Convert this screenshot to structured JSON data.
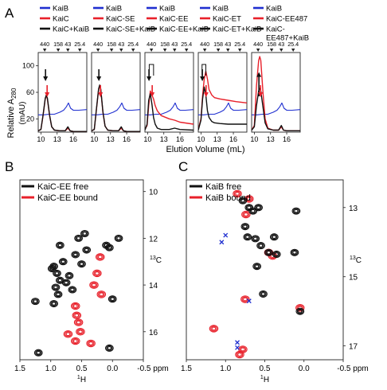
{
  "colors": {
    "blue": "#1f2fd0",
    "red": "#e8202a",
    "black": "#111111",
    "gray": "#777777"
  },
  "panel_labels": {
    "a": "A",
    "b": "B",
    "c": "C"
  },
  "panel_a": {
    "legends": [
      [
        "KaiB",
        "KaiC",
        "KaiC+KaiB"
      ],
      [
        "KaiB",
        "KaiC-SE",
        "KaiC-SE+KaiB"
      ],
      [
        "KaiB",
        "KaiC-EE",
        "KaiC-EE+KaiB"
      ],
      [
        "KaiB",
        "KaiC-ET",
        "KaiC-ET+KaiB"
      ],
      [
        "KaiB",
        "KaiC-EE487",
        "KaiC-\nEE487+KaiB"
      ]
    ],
    "marker_labels": [
      "440",
      "158",
      "43",
      "25.4"
    ],
    "ylabel": "Relative A280",
    "ylabel_main": "Relative A",
    "ylabel_sub": "280",
    "ylabel_unit": "(mAU)",
    "xlabel": "Elution Volume (mL)"
  },
  "chart_data": [
    {
      "type": "line",
      "panel": "A",
      "xlabel": "Elution Volume (mL)",
      "ylabel": "Relative A280 (mAU)",
      "xlim": [
        9.5,
        18.5
      ],
      "ylim": [
        0,
        120
      ],
      "xticks": [
        10,
        13,
        16
      ],
      "yticks": [
        20,
        60,
        100
      ],
      "top_markers": [
        {
          "label": "440",
          "x": 10.7
        },
        {
          "label": "158",
          "x": 13.2
        },
        {
          "label": "43",
          "x": 15.0
        },
        {
          "label": "25.4",
          "x": 17.2
        }
      ],
      "subpanels": [
        {
          "series": [
            {
              "name": "KaiB",
              "color": "blue",
              "x": [
                9.5,
                10.5,
                11.5,
                12.5,
                13.5,
                14.2,
                14.7,
                15.1,
                15.5,
                16.0,
                17.0,
                18.5
              ],
              "y": [
                26,
                26,
                27,
                27,
                30,
                33,
                38,
                44,
                36,
                33,
                33,
                34
              ]
            },
            {
              "name": "KaiC",
              "color": "red",
              "x": [
                9.5,
                10.0,
                10.4,
                10.8,
                11.0,
                11.2,
                11.6,
                12.0,
                12.5,
                13.5,
                14.5,
                15.0,
                15.4,
                16.0,
                18.5
              ],
              "y": [
                2,
                4,
                25,
                50,
                55,
                50,
                25,
                8,
                3,
                2,
                2,
                6,
                2,
                1,
                1
              ]
            },
            {
              "name": "KaiC+KaiB",
              "color": "black",
              "x": [
                9.5,
                10.0,
                10.4,
                10.8,
                11.0,
                11.2,
                11.6,
                12.0,
                12.5,
                13.5,
                14.5,
                15.0,
                15.4,
                16.0,
                18.5
              ],
              "y": [
                2,
                4,
                26,
                51,
                56,
                51,
                26,
                8,
                3,
                2,
                2,
                8,
                2,
                1,
                1
              ]
            }
          ],
          "arrows": [
            {
              "color": "black",
              "x": 11.0
            },
            {
              "color": "red",
              "x": 11.0
            }
          ]
        },
        {
          "series": [
            {
              "name": "KaiB",
              "color": "blue",
              "x": [
                9.5,
                10.5,
                11.5,
                12.5,
                13.5,
                14.2,
                14.7,
                15.1,
                15.5,
                16.0,
                17.0,
                18.5
              ],
              "y": [
                26,
                26,
                27,
                27,
                30,
                33,
                38,
                44,
                36,
                33,
                33,
                34
              ]
            },
            {
              "name": "KaiC-SE",
              "color": "red",
              "x": [
                9.5,
                10.0,
                10.4,
                10.8,
                11.0,
                11.2,
                11.6,
                12.0,
                12.5,
                13.5,
                14.5,
                15.0,
                15.4,
                16.0,
                18.5
              ],
              "y": [
                2,
                4,
                34,
                64,
                70,
                64,
                30,
                9,
                3,
                2,
                2,
                6,
                2,
                1,
                1
              ]
            },
            {
              "name": "KaiC-SE+KaiB",
              "color": "black",
              "x": [
                9.5,
                10.0,
                10.4,
                10.8,
                11.0,
                11.2,
                11.6,
                12.0,
                12.5,
                13.5,
                14.5,
                15.0,
                15.4,
                16.0,
                18.5
              ],
              "y": [
                2,
                4,
                35,
                65,
                71,
                65,
                31,
                9,
                3,
                2,
                2,
                8,
                2,
                1,
                1
              ]
            }
          ],
          "arrows": [
            {
              "color": "black",
              "x": 11.0
            },
            {
              "color": "red",
              "x": 11.0
            }
          ]
        },
        {
          "series": [
            {
              "name": "KaiB",
              "color": "blue",
              "x": [
                9.5,
                10.5,
                11.5,
                12.5,
                13.5,
                14.2,
                14.7,
                15.1,
                15.5,
                16.0,
                17.0,
                18.5
              ],
              "y": [
                26,
                26,
                27,
                27,
                30,
                33,
                38,
                44,
                36,
                33,
                33,
                34
              ]
            },
            {
              "name": "KaiC-EE",
              "color": "red",
              "x": [
                9.5,
                9.9,
                10.2,
                10.5,
                10.8,
                11.1,
                11.4,
                11.8,
                12.5,
                14.0,
                15.0,
                16.0,
                18.5
              ],
              "y": [
                4,
                10,
                40,
                62,
                56,
                50,
                40,
                32,
                25,
                20,
                18,
                15,
                12
              ]
            },
            {
              "name": "KaiC-EE+KaiB",
              "color": "black",
              "x": [
                9.5,
                9.9,
                10.2,
                10.5,
                10.8,
                11.1,
                11.4,
                11.8,
                12.5,
                14.0,
                15.0,
                16.0,
                18.5
              ],
              "y": [
                3,
                12,
                48,
                58,
                42,
                22,
                12,
                6,
                4,
                4,
                6,
                4,
                3
              ]
            }
          ],
          "bracket": {
            "x": [
              10.3,
              11.1
            ],
            "y": 102
          },
          "arrows": [
            {
              "color": "black",
              "x": 10.4
            },
            {
              "color": "red",
              "x": 10.7
            }
          ]
        },
        {
          "series": [
            {
              "name": "KaiB",
              "color": "blue",
              "x": [
                9.5,
                10.5,
                11.5,
                12.5,
                13.5,
                14.2,
                14.7,
                15.1,
                15.5,
                16.0,
                17.0,
                18.5
              ],
              "y": [
                26,
                26,
                27,
                27,
                30,
                33,
                38,
                44,
                36,
                33,
                33,
                34
              ]
            },
            {
              "name": "KaiC-ET",
              "color": "red",
              "x": [
                9.5,
                10.0,
                10.3,
                10.6,
                10.9,
                11.2,
                11.5,
                12.0,
                12.5,
                13.5,
                15.0,
                16.5,
                18.5
              ],
              "y": [
                4,
                20,
                55,
                80,
                92,
                80,
                64,
                56,
                52,
                50,
                48,
                46,
                44
              ]
            },
            {
              "name": "KaiC-ET+KaiB",
              "color": "black",
              "x": [
                9.5,
                10.0,
                10.3,
                10.6,
                10.9,
                11.2,
                11.5,
                12.0,
                12.5,
                13.5,
                15.0,
                16.5,
                18.5
              ],
              "y": [
                3,
                18,
                50,
                68,
                56,
                32,
                22,
                16,
                14,
                13,
                12,
                12,
                12
              ]
            }
          ],
          "bracket": {
            "x": [
              10.2,
              10.9
            ],
            "y": 102
          },
          "arrows": [
            {
              "color": "black",
              "x": 10.4
            },
            {
              "color": "red",
              "x": 10.8
            }
          ]
        },
        {
          "series": [
            {
              "name": "KaiB",
              "color": "blue",
              "x": [
                9.5,
                10.5,
                11.5,
                12.5,
                13.5,
                14.2,
                14.7,
                15.1,
                15.5,
                16.0,
                17.0,
                18.5
              ],
              "y": [
                26,
                26,
                27,
                27,
                30,
                33,
                38,
                44,
                36,
                33,
                33,
                34
              ]
            },
            {
              "name": "KaiC-EE487",
              "color": "red",
              "x": [
                9.5,
                10.0,
                10.4,
                10.8,
                11.0,
                11.2,
                11.6,
                12.0,
                12.5,
                13.5,
                14.5,
                15.0,
                15.4,
                16.0,
                18.5
              ],
              "y": [
                3,
                10,
                70,
                108,
                114,
                108,
                60,
                20,
                6,
                3,
                3,
                8,
                3,
                2,
                2
              ]
            },
            {
              "name": "KaiC-EE487+KaiB",
              "color": "black",
              "x": [
                9.5,
                10.0,
                10.4,
                10.8,
                11.0,
                11.2,
                11.6,
                12.0,
                12.5,
                13.5,
                14.5,
                15.0,
                15.4,
                16.0,
                18.5
              ],
              "y": [
                3,
                8,
                40,
                62,
                66,
                62,
                38,
                14,
                5,
                3,
                3,
                10,
                3,
                2,
                2
              ]
            }
          ],
          "arrows": [
            {
              "color": "black",
              "x": 11.0,
              "direction": "up"
            },
            {
              "color": "red",
              "x": 11.0
            }
          ]
        }
      ]
    },
    {
      "type": "scatter",
      "panel": "B",
      "xlabel": "1H",
      "ylabel": "13C",
      "xunit": "ppm",
      "xlim": [
        1.5,
        -0.5
      ],
      "ylim": [
        17.2,
        9.5
      ],
      "xticks": [
        1.5,
        1.0,
        0.5,
        0.0,
        -0.5
      ],
      "yticks": [
        10,
        12,
        14,
        16
      ],
      "legend": [
        "KaiC-EE free",
        "KaiC-EE bound"
      ],
      "peaks_free": [
        {
          "x": 0.95,
          "y": 13.2
        },
        {
          "x": 0.9,
          "y": 13.5
        },
        {
          "x": 0.85,
          "y": 13.8
        },
        {
          "x": 0.92,
          "y": 14.1
        },
        {
          "x": 0.88,
          "y": 14.4
        },
        {
          "x": 0.8,
          "y": 13.0
        },
        {
          "x": 0.75,
          "y": 13.9
        },
        {
          "x": 0.98,
          "y": 13.3
        },
        {
          "x": 0.7,
          "y": 13.6
        },
        {
          "x": 0.65,
          "y": 14.2
        },
        {
          "x": 0.6,
          "y": 12.7
        },
        {
          "x": 0.55,
          "y": 12.0
        },
        {
          "x": 0.5,
          "y": 13.1
        },
        {
          "x": 0.45,
          "y": 11.8
        },
        {
          "x": 0.42,
          "y": 12.5
        },
        {
          "x": 0.1,
          "y": 12.3
        },
        {
          "x": 0.05,
          "y": 12.4
        },
        {
          "x": 0.0,
          "y": 14.6
        },
        {
          "x": -0.1,
          "y": 12.0
        },
        {
          "x": 1.25,
          "y": 14.7
        },
        {
          "x": 1.2,
          "y": 16.9
        },
        {
          "x": 0.05,
          "y": 16.7
        },
        {
          "x": 0.95,
          "y": 14.8
        },
        {
          "x": 0.85,
          "y": 12.3
        }
      ],
      "peaks_bound": [
        {
          "x": 0.6,
          "y": 14.9
        },
        {
          "x": 0.58,
          "y": 15.3
        },
        {
          "x": 0.55,
          "y": 15.6
        },
        {
          "x": 0.52,
          "y": 16.0
        },
        {
          "x": 0.6,
          "y": 16.4
        },
        {
          "x": 0.3,
          "y": 14.0
        },
        {
          "x": 0.25,
          "y": 13.5
        },
        {
          "x": 0.35,
          "y": 16.5
        },
        {
          "x": 0.72,
          "y": 16.1
        },
        {
          "x": 0.2,
          "y": 12.8
        },
        {
          "x": 0.18,
          "y": 14.4
        }
      ]
    },
    {
      "type": "scatter",
      "panel": "C",
      "xlabel": "1H",
      "ylabel": "13C",
      "xunit": "ppm",
      "xlim": [
        1.5,
        -0.5
      ],
      "ylim": [
        17.4,
        12.2
      ],
      "xticks": [
        1.5,
        1.0,
        0.5,
        0.0,
        -0.5
      ],
      "yticks": [
        13,
        15,
        17
      ],
      "legend": [
        "KaiB free",
        "KaiB bound"
      ],
      "peaks_free": [
        {
          "x": 0.78,
          "y": 12.8
        },
        {
          "x": 0.7,
          "y": 13.0
        },
        {
          "x": 0.65,
          "y": 13.1
        },
        {
          "x": 0.58,
          "y": 13.0
        },
        {
          "x": 0.1,
          "y": 13.1
        },
        {
          "x": 0.75,
          "y": 13.55
        },
        {
          "x": 0.72,
          "y": 13.85
        },
        {
          "x": 0.62,
          "y": 13.9
        },
        {
          "x": 0.38,
          "y": 13.85
        },
        {
          "x": 0.55,
          "y": 14.1
        },
        {
          "x": 0.45,
          "y": 14.3
        },
        {
          "x": 0.35,
          "y": 14.35
        },
        {
          "x": 0.12,
          "y": 14.3
        },
        {
          "x": 0.6,
          "y": 14.7
        },
        {
          "x": 0.52,
          "y": 15.5
        },
        {
          "x": 0.05,
          "y": 16.0
        }
      ],
      "peaks_bound": [
        {
          "x": 0.85,
          "y": 12.6
        },
        {
          "x": 0.7,
          "y": 12.75
        },
        {
          "x": 0.74,
          "y": 13.2
        },
        {
          "x": 0.45,
          "y": 14.3
        },
        {
          "x": 0.4,
          "y": 14.4
        },
        {
          "x": 0.75,
          "y": 15.65
        },
        {
          "x": 0.05,
          "y": 15.9
        },
        {
          "x": 1.15,
          "y": 16.5
        },
        {
          "x": 0.78,
          "y": 17.1
        },
        {
          "x": 0.82,
          "y": 17.25
        }
      ],
      "peaks_other": [
        {
          "x": 1.0,
          "y": 13.8
        },
        {
          "x": 1.05,
          "y": 14.0
        },
        {
          "x": 0.7,
          "y": 15.7
        },
        {
          "x": 0.85,
          "y": 16.9
        },
        {
          "x": 0.85,
          "y": 17.05
        }
      ]
    }
  ]
}
